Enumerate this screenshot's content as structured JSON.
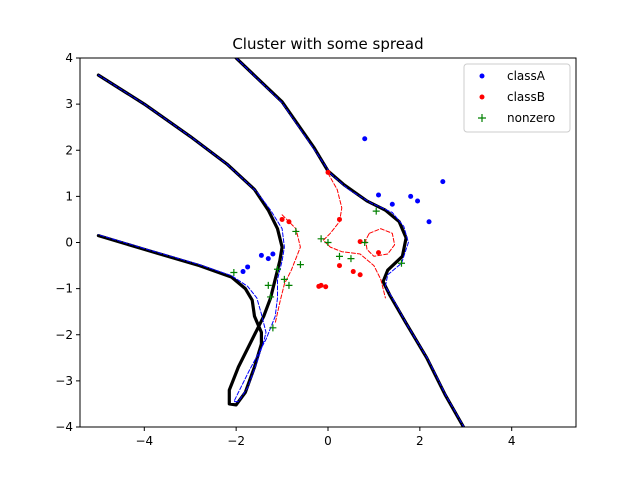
{
  "chart_data": {
    "type": "scatter",
    "title": "Cluster with some spread",
    "xlabel": "",
    "ylabel": "",
    "xlim": [
      -5.4,
      5.4
    ],
    "ylim": [
      -4,
      4
    ],
    "xticks": [
      -4,
      -2,
      0,
      2,
      4
    ],
    "yticks": [
      -4,
      -3,
      -2,
      -1,
      0,
      1,
      2,
      3,
      4
    ],
    "grid": false,
    "legend_position": "top-right",
    "series": [
      {
        "name": "classA",
        "kind": "points",
        "color": "#0000ff",
        "marker": "dot",
        "points": [
          [
            0.8,
            2.25
          ],
          [
            2.5,
            1.32
          ],
          [
            1.1,
            1.03
          ],
          [
            1.8,
            1.0
          ],
          [
            1.95,
            0.9
          ],
          [
            1.4,
            0.83
          ],
          [
            2.2,
            0.45
          ],
          [
            -1.2,
            -0.25
          ],
          [
            -1.45,
            -0.28
          ],
          [
            -1.3,
            -0.35
          ],
          [
            -1.75,
            -0.53
          ],
          [
            -1.85,
            -0.63
          ]
        ]
      },
      {
        "name": "classB",
        "kind": "points",
        "color": "#ff0000",
        "marker": "dot",
        "points": [
          [
            0.0,
            1.52
          ],
          [
            -1.0,
            0.5
          ],
          [
            -0.85,
            0.45
          ],
          [
            0.25,
            0.5
          ],
          [
            0.7,
            0.02
          ],
          [
            1.1,
            -0.22
          ],
          [
            0.25,
            -0.5
          ],
          [
            0.55,
            -0.63
          ],
          [
            0.7,
            -0.7
          ],
          [
            -0.15,
            -0.93
          ],
          [
            -0.05,
            -0.96
          ],
          [
            -0.2,
            -0.95
          ]
        ]
      },
      {
        "name": "nonzero",
        "kind": "points",
        "color": "#008000",
        "marker": "plus",
        "points": [
          [
            1.05,
            0.68
          ],
          [
            -0.7,
            0.24
          ],
          [
            -0.15,
            0.08
          ],
          [
            0.0,
            -0.0
          ],
          [
            0.8,
            0.0
          ],
          [
            0.25,
            -0.3
          ],
          [
            0.5,
            -0.35
          ],
          [
            -0.6,
            -0.48
          ],
          [
            -1.1,
            -0.58
          ],
          [
            -1.3,
            -0.93
          ],
          [
            -0.85,
            -0.93
          ],
          [
            -1.25,
            -1.18
          ],
          [
            -2.05,
            -0.65
          ],
          [
            1.6,
            -0.45
          ],
          [
            -1.2,
            -1.85
          ],
          [
            -0.95,
            -0.8
          ]
        ]
      }
    ],
    "curves": [
      {
        "role": "decision-boundary",
        "style": "solid-thick",
        "color": "#000000",
        "paths": [
          [
            [
              -5.0,
              3.63
            ],
            [
              -4.0,
              3.0
            ],
            [
              -3.0,
              2.3
            ],
            [
              -2.2,
              1.7
            ],
            [
              -1.6,
              1.15
            ],
            [
              -1.3,
              0.7
            ],
            [
              -1.1,
              0.3
            ],
            [
              -1.0,
              -0.1
            ],
            [
              -1.05,
              -0.4
            ],
            [
              -1.15,
              -0.8
            ],
            [
              -1.25,
              -1.2
            ],
            [
              -1.4,
              -1.6
            ],
            [
              -1.65,
              -2.1
            ],
            [
              -1.95,
              -2.7
            ],
            [
              -2.15,
              -3.2
            ],
            [
              -2.15,
              -3.5
            ],
            [
              -2.0,
              -3.52
            ],
            [
              -1.8,
              -3.25
            ],
            [
              -1.6,
              -2.7
            ],
            [
              -1.45,
              -2.2
            ],
            [
              -1.45,
              -1.95
            ],
            [
              -1.6,
              -1.6
            ],
            [
              -1.65,
              -1.25
            ],
            [
              -1.8,
              -1.0
            ],
            [
              -2.1,
              -0.75
            ],
            [
              -2.8,
              -0.5
            ],
            [
              -4.0,
              -0.15
            ],
            [
              -5.0,
              0.15
            ]
          ],
          [
            [
              -2.0,
              4.0
            ],
            [
              -1.0,
              3.05
            ],
            [
              -0.3,
              2.05
            ],
            [
              0.0,
              1.55
            ],
            [
              0.35,
              1.25
            ],
            [
              0.85,
              0.9
            ],
            [
              1.25,
              0.7
            ],
            [
              1.55,
              0.45
            ],
            [
              1.7,
              0.1
            ],
            [
              1.62,
              -0.3
            ],
            [
              1.3,
              -0.6
            ],
            [
              1.2,
              -0.85
            ],
            [
              1.35,
              -1.15
            ],
            [
              1.7,
              -1.75
            ],
            [
              2.15,
              -2.5
            ],
            [
              2.55,
              -3.3
            ],
            [
              2.95,
              -4.0
            ]
          ]
        ]
      },
      {
        "role": "margin-1",
        "style": "dashed",
        "color": "#0000ff",
        "paths": [
          [
            [
              -5.0,
              3.63
            ],
            [
              -4.0,
              3.0
            ],
            [
              -3.0,
              2.3
            ],
            [
              -2.2,
              1.7
            ],
            [
              -1.55,
              1.1
            ],
            [
              -1.25,
              0.7
            ],
            [
              -1.0,
              0.3
            ],
            [
              -0.95,
              -0.1
            ],
            [
              -1.0,
              -0.4
            ],
            [
              -1.1,
              -0.8
            ],
            [
              -1.1,
              -1.2
            ],
            [
              -1.15,
              -1.6
            ],
            [
              -1.35,
              -2.1
            ],
            [
              -1.7,
              -2.75
            ],
            [
              -1.95,
              -3.25
            ],
            [
              -2.05,
              -3.45
            ],
            [
              -1.95,
              -3.45
            ],
            [
              -1.75,
              -3.15
            ],
            [
              -1.55,
              -2.6
            ],
            [
              -1.4,
              -2.15
            ],
            [
              -1.35,
              -1.95
            ],
            [
              -1.45,
              -1.55
            ],
            [
              -1.55,
              -1.2
            ],
            [
              -1.75,
              -0.95
            ],
            [
              -2.1,
              -0.72
            ],
            [
              -2.8,
              -0.48
            ],
            [
              -4.0,
              -0.13
            ],
            [
              -5.0,
              0.17
            ]
          ],
          [
            [
              -2.0,
              4.0
            ],
            [
              -1.0,
              3.03
            ],
            [
              -0.3,
              2.02
            ],
            [
              0.05,
              1.5
            ],
            [
              0.45,
              1.15
            ],
            [
              0.95,
              0.85
            ],
            [
              1.4,
              0.65
            ],
            [
              1.65,
              0.35
            ],
            [
              1.75,
              0.0
            ],
            [
              1.6,
              -0.45
            ],
            [
              1.3,
              -0.7
            ],
            [
              1.25,
              -0.95
            ],
            [
              1.4,
              -1.2
            ],
            [
              1.72,
              -1.78
            ],
            [
              2.17,
              -2.52
            ],
            [
              2.57,
              -3.32
            ],
            [
              2.96,
              -4.0
            ]
          ]
        ]
      },
      {
        "role": "margin-2",
        "style": "dashed",
        "color": "#ff0000",
        "paths": [
          [
            [
              -1.0,
              0.6
            ],
            [
              -0.7,
              0.3
            ],
            [
              -0.6,
              -0.1
            ],
            [
              -0.8,
              -0.6
            ],
            [
              -0.95,
              -0.9
            ],
            [
              -1.05,
              -1.3
            ],
            [
              -1.15,
              -1.75
            ]
          ],
          [
            [
              0.0,
              1.5
            ],
            [
              0.2,
              1.15
            ],
            [
              0.3,
              0.75
            ],
            [
              0.25,
              0.45
            ],
            [
              0.05,
              0.2
            ],
            [
              -0.1,
              0.05
            ],
            [
              0.05,
              -0.1
            ],
            [
              0.3,
              -0.2
            ],
            [
              0.7,
              -0.25
            ],
            [
              1.0,
              -0.5
            ],
            [
              1.15,
              -0.8
            ],
            [
              1.25,
              -1.2
            ]
          ],
          [
            [
              0.9,
              0.2
            ],
            [
              1.15,
              0.3
            ],
            [
              1.4,
              0.2
            ],
            [
              1.45,
              -0.05
            ],
            [
              1.3,
              -0.25
            ],
            [
              1.0,
              -0.3
            ],
            [
              0.85,
              -0.15
            ],
            [
              0.82,
              0.05
            ],
            [
              0.9,
              0.2
            ]
          ]
        ]
      }
    ]
  }
}
